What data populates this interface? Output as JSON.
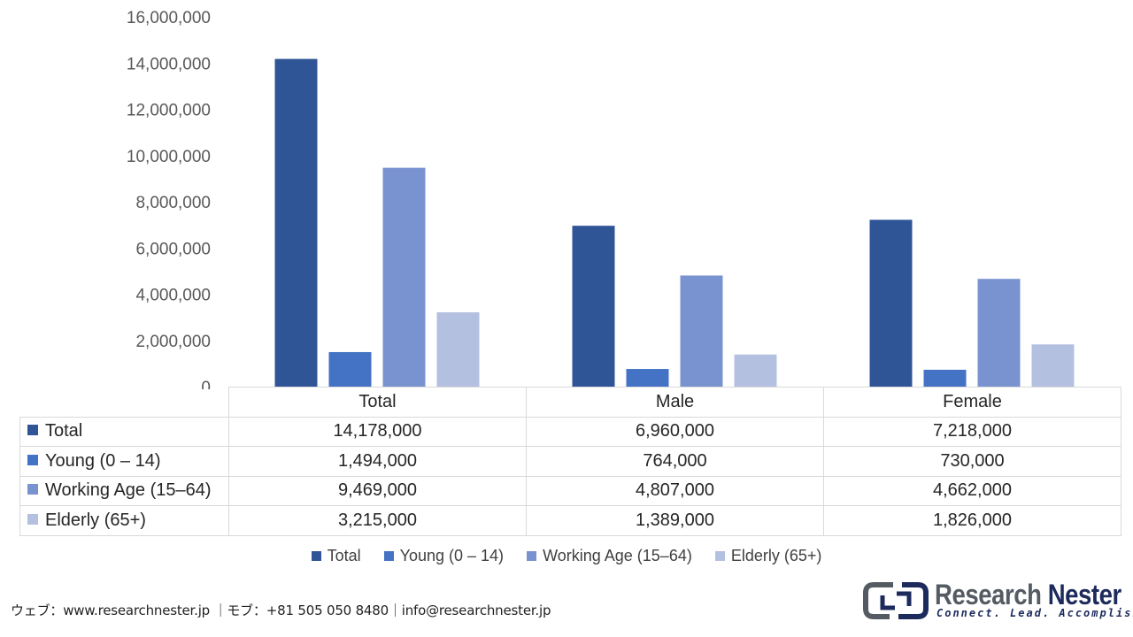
{
  "chart_data": {
    "type": "bar",
    "categories": [
      "Total",
      "Male",
      "Female"
    ],
    "series": [
      {
        "name": "Total",
        "values": [
          14178000,
          6960000,
          7218000
        ],
        "color": "#2f5597"
      },
      {
        "name": "Young (0 – 14)",
        "values": [
          1494000,
          764000,
          730000
        ],
        "color": "#4472c4"
      },
      {
        "name": "Working Age (15–64)",
        "values": [
          9469000,
          4807000,
          4662000
        ],
        "color": "#7993d0"
      },
      {
        "name": "Elderly (65+)",
        "values": [
          3215000,
          1389000,
          1826000
        ],
        "color": "#b4c0e0"
      }
    ],
    "ylim": [
      0,
      16000000
    ],
    "yticks": [
      "0",
      "2,000,000",
      "4,000,000",
      "6,000,000",
      "8,000,000",
      "10,000,000",
      "12,000,000",
      "14,000,000",
      "16,000,000"
    ],
    "grid": false,
    "legend": "bottom",
    "data_table": {
      "columns": [
        "Total",
        "Male",
        "Female"
      ],
      "rows": [
        {
          "label": "Total",
          "cells": [
            "14,178,000",
            "6,960,000",
            "7,218,000"
          ]
        },
        {
          "label": "Young (0 – 14)",
          "cells": [
            "1,494,000",
            "764,000",
            "730,000"
          ]
        },
        {
          "label": "Working Age (15–64)",
          "cells": [
            "9,469,000",
            "4,807,000",
            "4,662,000"
          ]
        },
        {
          "label": "Elderly (65+)",
          "cells": [
            "3,215,000",
            "1,389,000",
            "1,826,000"
          ]
        }
      ]
    }
  },
  "footer": {
    "contact": "ウェブ：www.researchnester.jp ｜モブ：+81 505 050 8480｜info@researchnester.jp"
  },
  "logo": {
    "name_part1": "Research",
    "name_part2": "Nester",
    "tagline": "Connect. Lead. Accomplish"
  }
}
